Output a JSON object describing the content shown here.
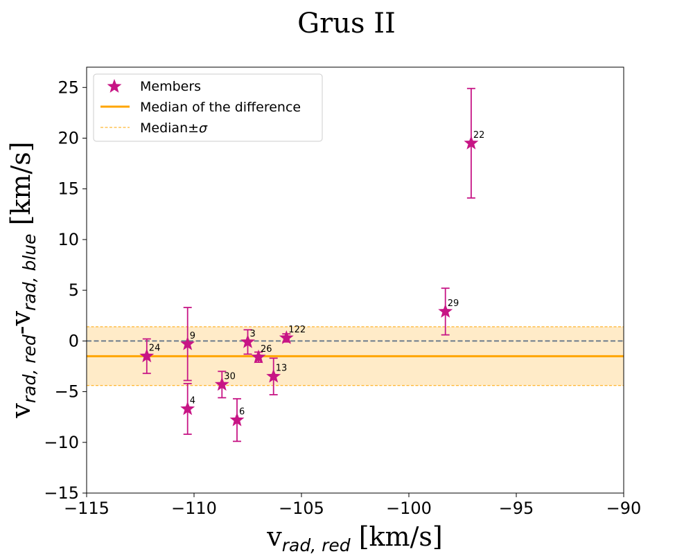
{
  "chart_data": {
    "type": "scatter",
    "title": "Grus II",
    "xlabel": "v_{rad, red} [km/s]",
    "ylabel": "v_{rad, red}-v_{rad, blue} [km/s]",
    "xlim": [
      -115,
      -90
    ],
    "ylim": [
      -15,
      27
    ],
    "xticks": [
      -115,
      -110,
      -105,
      -100,
      -95,
      -90
    ],
    "xtick_labels": [
      "−115",
      "−110",
      "−105",
      "−100",
      "−95",
      "−90"
    ],
    "yticks": [
      -15,
      -10,
      -5,
      0,
      5,
      10,
      15,
      20,
      25
    ],
    "ytick_labels": [
      "−15",
      "−10",
      "−5",
      "0",
      "5",
      "10",
      "15",
      "20",
      "25"
    ],
    "grid": false,
    "median": -1.5,
    "sigma": 2.9,
    "zero_line": 0,
    "legend": {
      "position": "upper-left",
      "members": "Members",
      "median": "Median of the difference",
      "sigma_prefix": "Median±",
      "sigma_symbol": "σ"
    },
    "series": [
      {
        "name": "Members",
        "points": [
          {
            "label": "24",
            "x": -112.2,
            "y": -1.5,
            "err": 1.7
          },
          {
            "label": "9",
            "x": -110.3,
            "y": -0.3,
            "err": 3.6
          },
          {
            "label": "4",
            "x": -110.3,
            "y": -6.7,
            "err": 2.5
          },
          {
            "label": "30",
            "x": -108.7,
            "y": -4.3,
            "err": 1.3
          },
          {
            "label": "6",
            "x": -108.0,
            "y": -7.8,
            "err": 2.1
          },
          {
            "label": "3",
            "x": -107.5,
            "y": -0.1,
            "err": 1.2
          },
          {
            "label": "26",
            "x": -107.0,
            "y": -1.6,
            "err": 0.5
          },
          {
            "label": "13",
            "x": -106.3,
            "y": -3.5,
            "err": 1.8
          },
          {
            "label": "122",
            "x": -105.7,
            "y": 0.3,
            "err": 0.4
          },
          {
            "label": "29",
            "x": -98.3,
            "y": 2.9,
            "err": 2.3
          },
          {
            "label": "22",
            "x": -97.1,
            "y": 19.5,
            "err": 5.4
          }
        ]
      }
    ],
    "colors": {
      "members": "#c71585",
      "median": "#ffa500",
      "band": "#ffebc8",
      "zero": "#6b7b8c"
    }
  }
}
